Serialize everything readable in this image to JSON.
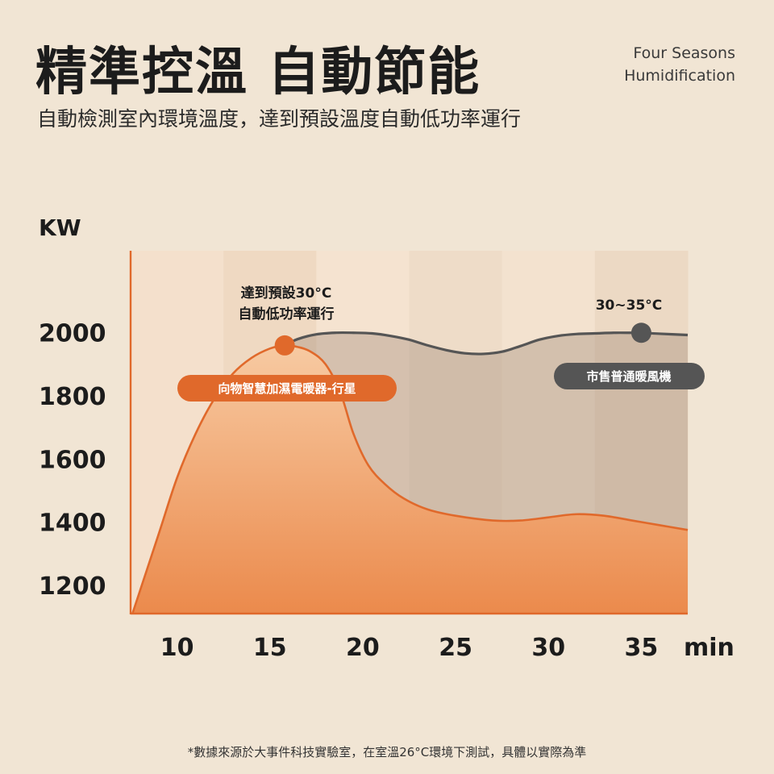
{
  "header": {
    "title": "精準控溫 自動節能",
    "brand_line1": "Four Seasons",
    "brand_line2": "Humidification",
    "subtitle": "自動檢測室內環境溫度，達到預設溫度自動低功率運行"
  },
  "footnote": "*數據來源於大事件科技實驗室，在室溫26°C環境下測試，具體以實際為準",
  "colors": {
    "background": "#f1e5d4",
    "orange": "#e0692b",
    "orange_fill_top": "#f6c59a",
    "orange_fill_bottom": "#eb8a4c",
    "grey": "#555555",
    "grey_fill": "#c9b6a2"
  },
  "chart_data": {
    "type": "area",
    "ylabel": "KW",
    "xunit": "min",
    "xlim": [
      7.5,
      37.5
    ],
    "ylim": [
      1110,
      2260
    ],
    "x_ticks": [
      10,
      15,
      20,
      25,
      30,
      35
    ],
    "y_ticks": [
      1200,
      1400,
      1600,
      1800,
      2000
    ],
    "series": [
      {
        "name": "向物智慧加濕電暖器-行星",
        "x": [
          7.6,
          9,
          10,
          11,
          12,
          13,
          14,
          15,
          15.8,
          16.5,
          17.2,
          18,
          18.8,
          19.5,
          20.3,
          21.2,
          22.2,
          23.5,
          25,
          27,
          28.5,
          30,
          31.5,
          33,
          34.5,
          36,
          37.5
        ],
        "y": [
          1110,
          1360,
          1540,
          1680,
          1790,
          1870,
          1920,
          1950,
          1960,
          1955,
          1940,
          1900,
          1810,
          1680,
          1580,
          1520,
          1475,
          1440,
          1420,
          1405,
          1405,
          1415,
          1425,
          1420,
          1405,
          1390,
          1375
        ]
      },
      {
        "name": "市售普通暖風機",
        "x": [
          15.8,
          16.5,
          17.5,
          18.5,
          19.5,
          20.5,
          21.5,
          22.5,
          23.5,
          24.5,
          25.5,
          26.5,
          27.5,
          28.5,
          29.5,
          30.5,
          31.5,
          32.5,
          33.5,
          34.5,
          35,
          36,
          37.5
        ],
        "y": [
          1960,
          1980,
          1995,
          2000,
          2000,
          1998,
          1990,
          1978,
          1960,
          1945,
          1935,
          1933,
          1940,
          1958,
          1978,
          1990,
          1996,
          1998,
          2000,
          2000,
          2000,
          1997,
          1993
        ]
      }
    ],
    "annotations": [
      {
        "lines": [
          "達到預設30°C",
          "自動低功率運行"
        ],
        "x": 15.8,
        "y": 1960
      },
      {
        "lines": [
          "30~35°C"
        ],
        "x": 35,
        "y": 2000
      }
    ]
  }
}
